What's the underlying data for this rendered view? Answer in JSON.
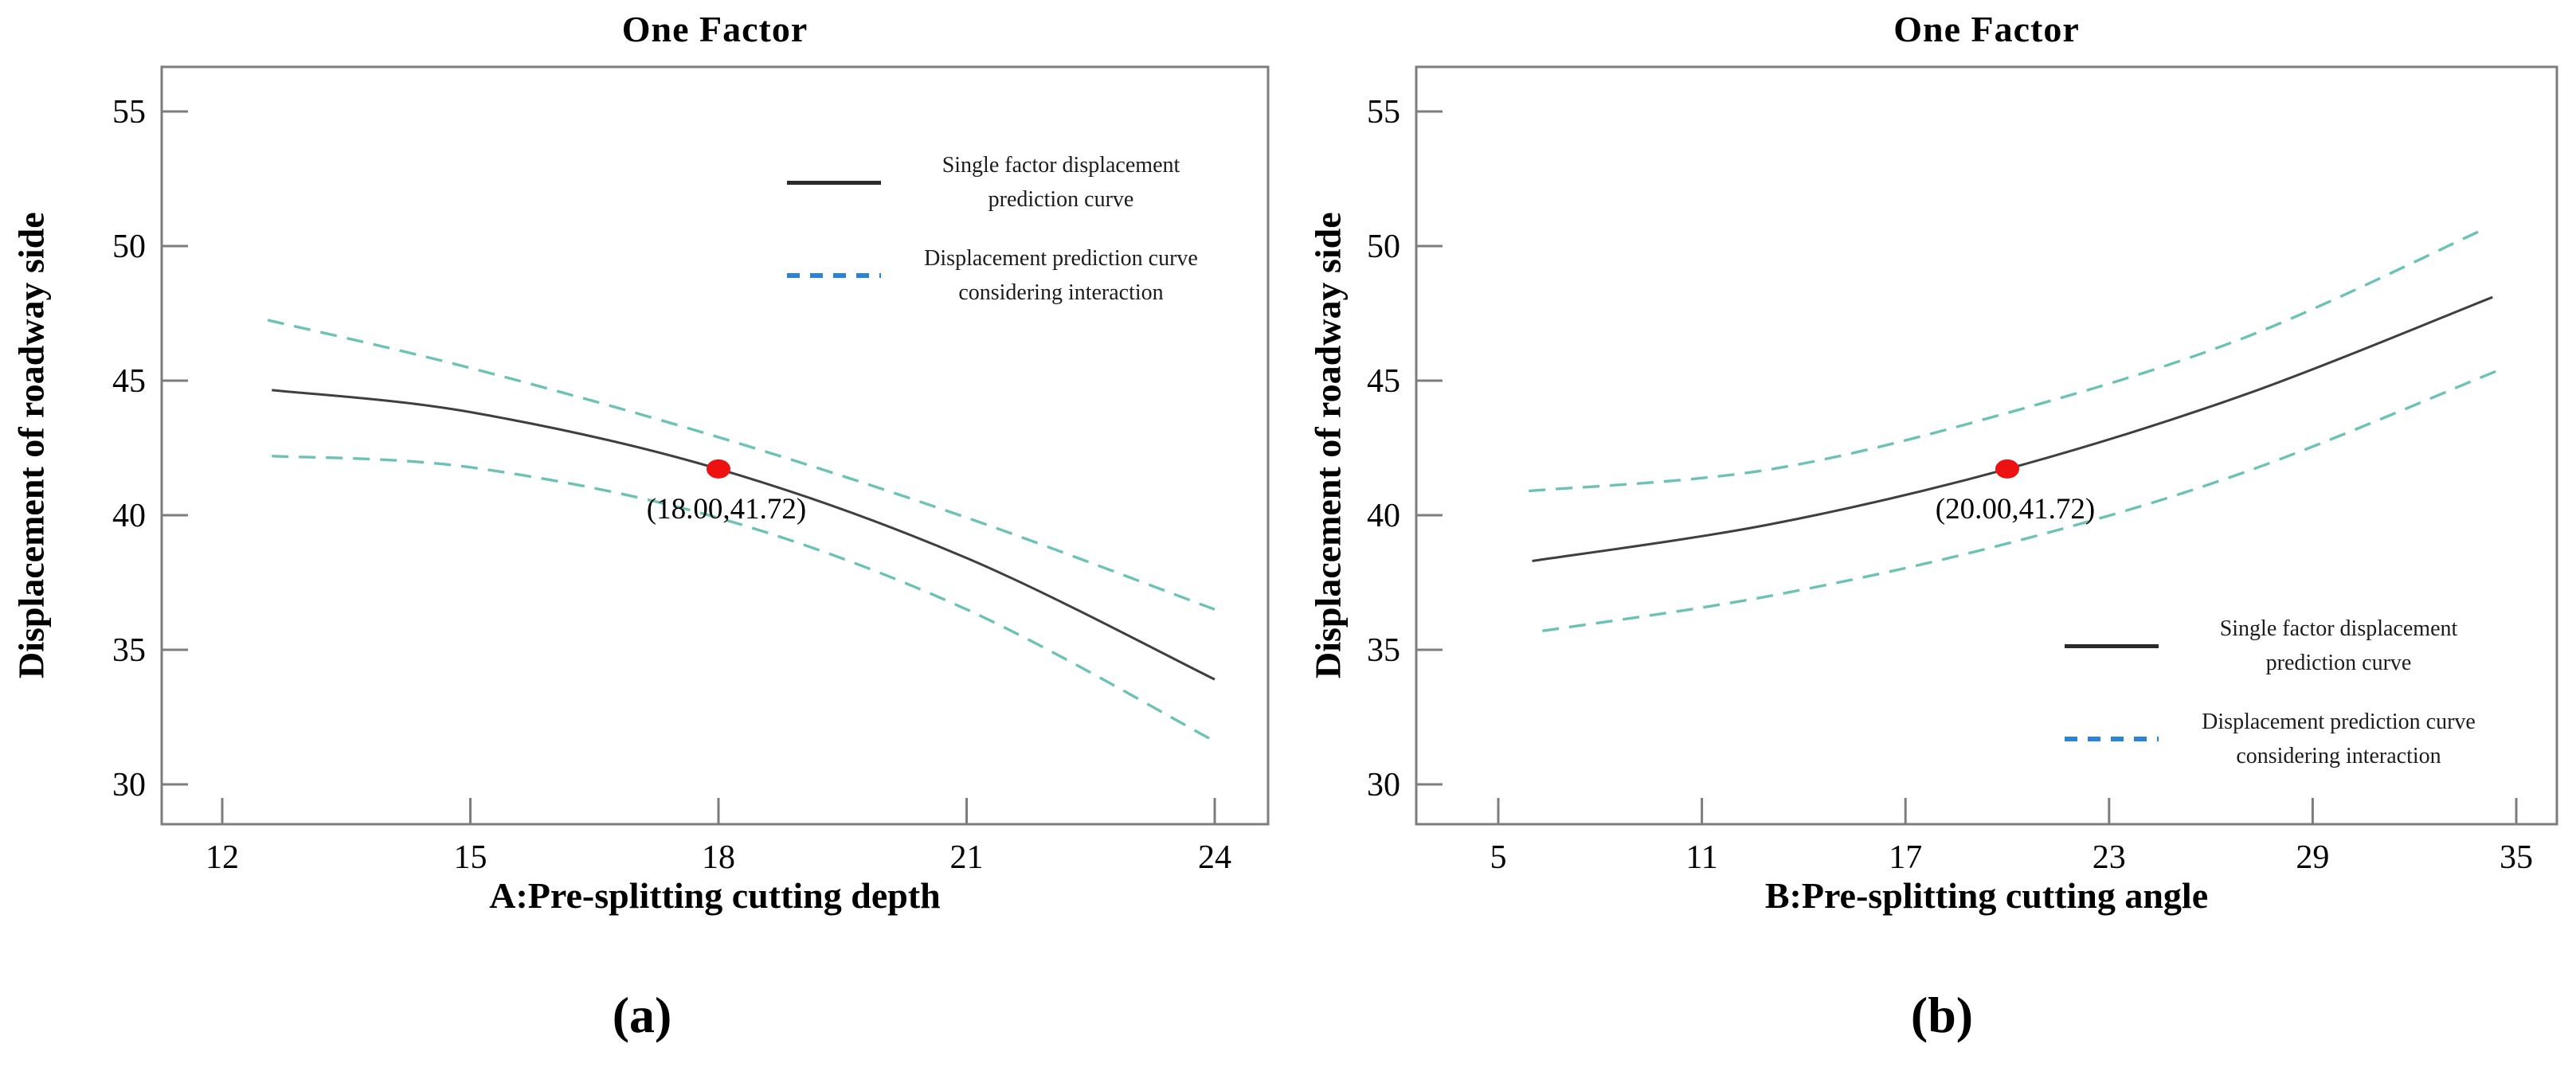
{
  "figure": {
    "background": "#ffffff"
  },
  "colors": {
    "solid_curve": "#3f3f3f",
    "band_dashed_curve": "#6cc2b5",
    "legend_dash_swatch": "#2b82d9",
    "axis": "#7d7d7d",
    "marker_point": "#ee1111",
    "text": "#000000"
  },
  "legend": {
    "solid_label": "Single factor displacement prediction curve",
    "dashed_label": "Displacement prediction curve considering interaction"
  },
  "captions": {
    "a": "(a)",
    "b": "(b)"
  },
  "chart_data": [
    {
      "id": "a",
      "type": "line",
      "title": "One Factor",
      "xlabel": "A:Pre-splitting cutting depth",
      "ylabel": "Displacement of roadway side",
      "xticks": [
        12,
        15,
        18,
        21,
        24
      ],
      "yticks": [
        55,
        50,
        45,
        40,
        35,
        30
      ],
      "xlim": [
        11.3,
        24.65
      ],
      "ylim": [
        28.5,
        56.7
      ],
      "grid": false,
      "legend_position": "upper-right-inside",
      "series": [
        {
          "name": "Single factor displacement prediction curve",
          "style": "solid",
          "points": [
            [
              12.6,
              44.65
            ],
            [
              15,
              43.83
            ],
            [
              18,
              41.72
            ],
            [
              21,
              38.41
            ],
            [
              24,
              33.9
            ]
          ]
        },
        {
          "name": "Displacement prediction curve considering interaction (upper band)",
          "style": "dashed",
          "points": [
            [
              12.55,
              47.25
            ],
            [
              15,
              45.47
            ],
            [
              18,
              42.9
            ],
            [
              21,
              39.91
            ],
            [
              24,
              36.5
            ]
          ]
        },
        {
          "name": "Displacement prediction curve considering interaction (lower band)",
          "style": "dashed",
          "points": [
            [
              12.6,
              42.2
            ],
            [
              15,
              41.78
            ],
            [
              18,
              39.9
            ],
            [
              21,
              36.5
            ],
            [
              24,
              31.6
            ]
          ]
        }
      ],
      "point": {
        "x": 18.0,
        "y": 41.72,
        "label": "(18.00,41.72)"
      }
    },
    {
      "id": "b",
      "type": "line",
      "title": "One Factor",
      "xlabel": "B:Pre-splitting cutting angle",
      "ylabel": "Displacement of roadway side",
      "xticks": [
        5,
        11,
        17,
        23,
        29,
        35
      ],
      "yticks": [
        55,
        50,
        45,
        40,
        35,
        30
      ],
      "xlim": [
        2.6,
        36.2
      ],
      "ylim": [
        28.5,
        56.7
      ],
      "grid": false,
      "legend_position": "lower-right-inside",
      "series": [
        {
          "name": "Single factor displacement prediction curve",
          "style": "solid",
          "points": [
            [
              6,
              38.3
            ],
            [
              13,
              39.66
            ],
            [
              20,
              41.72
            ],
            [
              27,
              44.48
            ],
            [
              34.3,
              48.1
            ]
          ]
        },
        {
          "name": "Displacement prediction curve considering interaction (upper band)",
          "style": "dashed",
          "points": [
            [
              5.9,
              40.9
            ],
            [
              13,
              41.7
            ],
            [
              20,
              43.8
            ],
            [
              27,
              46.6
            ],
            [
              34,
              50.6
            ]
          ]
        },
        {
          "name": "Displacement prediction curve considering interaction (lower band)",
          "style": "dashed",
          "points": [
            [
              6.3,
              35.7
            ],
            [
              13,
              37.0
            ],
            [
              20,
              38.95
            ],
            [
              27,
              41.6
            ],
            [
              34.5,
              45.4
            ]
          ]
        }
      ],
      "point": {
        "x": 20.0,
        "y": 41.72,
        "label": "(20.00,41.72)"
      }
    }
  ]
}
